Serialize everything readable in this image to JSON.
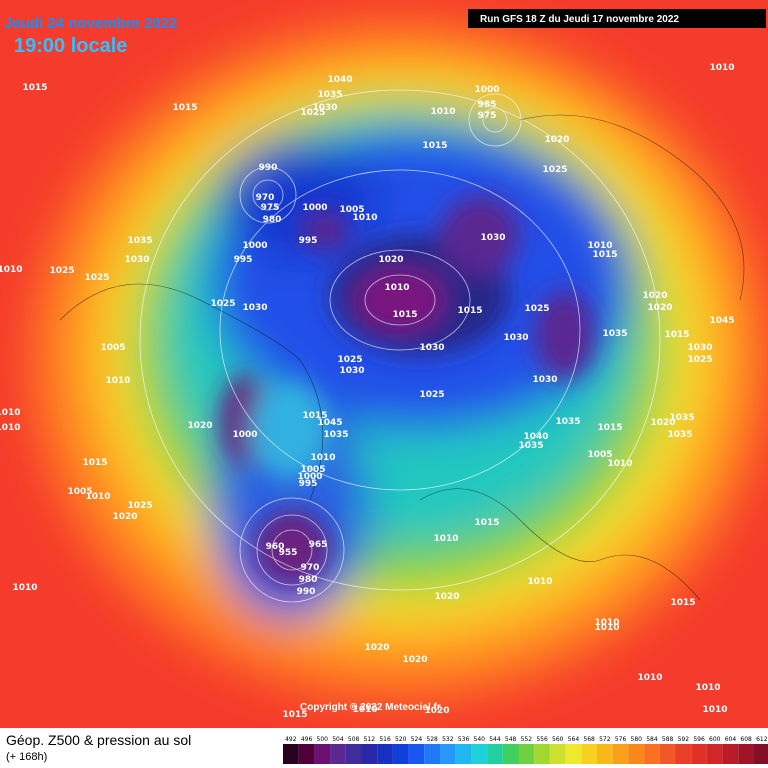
{
  "header": {
    "date": "Jeudi 24 novembre 2022",
    "time": "19:00 locale",
    "run": "Run GFS 18 Z du Jeudi 17 novembre 2022"
  },
  "copyright": "Copyright © 2022 Meteociel.fr",
  "footer": {
    "title": "Géop. Z500 & pression au sol",
    "range": "(+ 168h)"
  },
  "colorbar": [
    "492",
    "496",
    "500",
    "504",
    "508",
    "512",
    "516",
    "520",
    "524",
    "528",
    "532",
    "536",
    "540",
    "544",
    "548",
    "552",
    "556",
    "560",
    "564",
    "568",
    "572",
    "576",
    "580",
    "584",
    "588",
    "592",
    "596",
    "600",
    "604",
    "608",
    "612"
  ],
  "isobar_labels": [
    "1015",
    "1015",
    "1040",
    "1035",
    "1030",
    "1025",
    "1000",
    "985",
    "975",
    "1010",
    "1015",
    "1020",
    "1025",
    "1010",
    "990",
    "970",
    "975",
    "980",
    "1000",
    "1005",
    "1010",
    "995",
    "1000",
    "995",
    "1035",
    "1030",
    "1010",
    "1025",
    "1025",
    "1020",
    "1010",
    "1015",
    "1015",
    "1030",
    "1010",
    "1015",
    "1020",
    "1020",
    "1025",
    "1030",
    "1035",
    "1030",
    "1030",
    "1025",
    "1030",
    "1005",
    "1010",
    "1015",
    "1030",
    "1025",
    "1045",
    "1025",
    "1030",
    "1025",
    "1020",
    "1000",
    "1015",
    "1045",
    "1035",
    "1040",
    "1035",
    "1035",
    "1015",
    "1020",
    "1035",
    "1035",
    "1005",
    "1010",
    "1010",
    "1010",
    "1015",
    "1010",
    "1005",
    "1000",
    "995",
    "1005",
    "1010",
    "1025",
    "1020",
    "1015",
    "1010",
    "965",
    "960",
    "955",
    "970",
    "980",
    "990",
    "1010",
    "1020",
    "1010",
    "1015",
    "1010",
    "1010",
    "1020",
    "1020",
    "1010",
    "1010",
    "1010",
    "1015",
    "1020",
    "1010"
  ]
}
